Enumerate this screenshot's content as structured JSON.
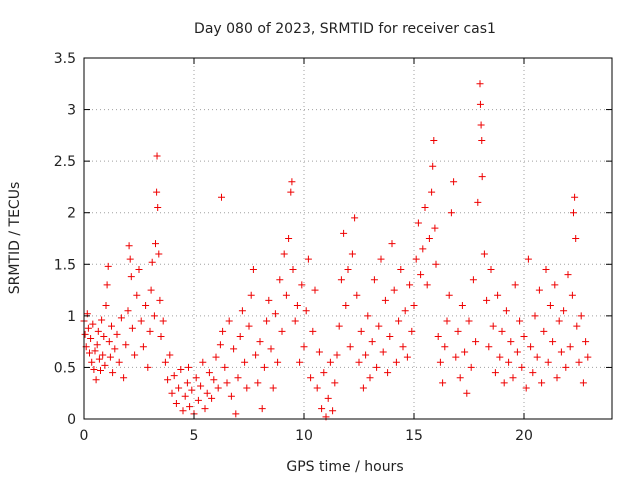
{
  "chart_data": {
    "type": "scatter",
    "title": "Day 080 of 2023, SRMTID for receiver cas1",
    "xlabel": "GPS time / hours",
    "ylabel": "SRMTID / TECUs",
    "xlim": [
      0,
      24
    ],
    "ylim": [
      0,
      3.5
    ],
    "xticks": [
      0,
      5,
      10,
      15,
      20
    ],
    "xtick_labels": [
      "0",
      "5",
      "10",
      "15",
      "20"
    ],
    "yticks": [
      0,
      0.5,
      1,
      1.5,
      2,
      2.5,
      3,
      3.5
    ],
    "ytick_labels": [
      "0",
      "0.5",
      "1",
      "1.5",
      "2",
      "2.5",
      "3",
      "3.5"
    ],
    "grid": true,
    "marker": "+",
    "colors": {
      "marker": "#ee0000"
    },
    "series": [
      {
        "name": "SRMTID",
        "points": [
          [
            0.0,
            0.95
          ],
          [
            0.05,
            0.82
          ],
          [
            0.1,
            0.7
          ],
          [
            0.15,
            1.02
          ],
          [
            0.2,
            0.88
          ],
          [
            0.25,
            0.64
          ],
          [
            0.3,
            0.78
          ],
          [
            0.35,
            0.55
          ],
          [
            0.4,
            0.92
          ],
          [
            0.45,
            0.48
          ],
          [
            0.5,
            0.66
          ],
          [
            0.55,
            0.38
          ],
          [
            0.6,
            0.72
          ],
          [
            0.65,
            0.85
          ],
          [
            0.7,
            0.58
          ],
          [
            0.75,
            0.47
          ],
          [
            0.8,
            0.96
          ],
          [
            0.85,
            0.62
          ],
          [
            0.9,
            0.8
          ],
          [
            0.95,
            0.52
          ],
          [
            1.0,
            1.1
          ],
          [
            1.05,
            1.3
          ],
          [
            1.1,
            1.48
          ],
          [
            1.15,
            0.75
          ],
          [
            1.2,
            0.6
          ],
          [
            1.25,
            0.9
          ],
          [
            1.3,
            0.45
          ],
          [
            1.4,
            0.68
          ],
          [
            1.5,
            0.82
          ],
          [
            1.6,
            0.55
          ],
          [
            1.7,
            0.98
          ],
          [
            1.8,
            0.4
          ],
          [
            1.9,
            0.72
          ],
          [
            2.0,
            1.05
          ],
          [
            2.05,
            1.68
          ],
          [
            2.1,
            1.55
          ],
          [
            2.15,
            1.38
          ],
          [
            2.2,
            0.88
          ],
          [
            2.3,
            0.62
          ],
          [
            2.4,
            1.2
          ],
          [
            2.5,
            1.45
          ],
          [
            2.6,
            0.95
          ],
          [
            2.7,
            0.7
          ],
          [
            2.8,
            1.1
          ],
          [
            2.9,
            0.5
          ],
          [
            3.0,
            0.85
          ],
          [
            3.05,
            1.25
          ],
          [
            3.1,
            1.52
          ],
          [
            3.2,
            1.0
          ],
          [
            3.25,
            1.7
          ],
          [
            3.3,
            2.2
          ],
          [
            3.32,
            2.55
          ],
          [
            3.35,
            2.05
          ],
          [
            3.4,
            1.6
          ],
          [
            3.45,
            1.15
          ],
          [
            3.5,
            0.8
          ],
          [
            3.6,
            0.95
          ],
          [
            3.7,
            0.55
          ],
          [
            3.8,
            0.38
          ],
          [
            3.9,
            0.62
          ],
          [
            4.0,
            0.25
          ],
          [
            4.1,
            0.42
          ],
          [
            4.2,
            0.15
          ],
          [
            4.3,
            0.3
          ],
          [
            4.4,
            0.48
          ],
          [
            4.5,
            0.08
          ],
          [
            4.6,
            0.22
          ],
          [
            4.7,
            0.35
          ],
          [
            4.75,
            0.5
          ],
          [
            4.8,
            0.12
          ],
          [
            4.9,
            0.28
          ],
          [
            5.0,
            0.05
          ],
          [
            5.1,
            0.4
          ],
          [
            5.2,
            0.18
          ],
          [
            5.3,
            0.32
          ],
          [
            5.4,
            0.55
          ],
          [
            5.5,
            0.1
          ],
          [
            5.6,
            0.25
          ],
          [
            5.7,
            0.45
          ],
          [
            5.8,
            0.2
          ],
          [
            5.9,
            0.38
          ],
          [
            6.0,
            0.6
          ],
          [
            6.1,
            0.3
          ],
          [
            6.2,
            0.72
          ],
          [
            6.25,
            2.15
          ],
          [
            6.3,
            0.85
          ],
          [
            6.4,
            0.5
          ],
          [
            6.5,
            0.35
          ],
          [
            6.6,
            0.95
          ],
          [
            6.7,
            0.22
          ],
          [
            6.8,
            0.68
          ],
          [
            6.9,
            0.05
          ],
          [
            7.0,
            0.4
          ],
          [
            7.1,
            0.8
          ],
          [
            7.2,
            1.05
          ],
          [
            7.3,
            0.55
          ],
          [
            7.4,
            0.3
          ],
          [
            7.5,
            0.9
          ],
          [
            7.6,
            1.2
          ],
          [
            7.7,
            1.45
          ],
          [
            7.8,
            0.62
          ],
          [
            7.9,
            0.35
          ],
          [
            8.0,
            0.75
          ],
          [
            8.1,
            0.1
          ],
          [
            8.2,
            0.5
          ],
          [
            8.3,
            0.95
          ],
          [
            8.4,
            1.15
          ],
          [
            8.5,
            0.68
          ],
          [
            8.6,
            0.3
          ],
          [
            8.7,
            1.02
          ],
          [
            8.8,
            0.55
          ],
          [
            8.9,
            1.35
          ],
          [
            9.0,
            0.85
          ],
          [
            9.1,
            1.6
          ],
          [
            9.2,
            1.2
          ],
          [
            9.3,
            1.75
          ],
          [
            9.4,
            2.2
          ],
          [
            9.45,
            2.3
          ],
          [
            9.5,
            1.45
          ],
          [
            9.6,
            0.95
          ],
          [
            9.7,
            1.1
          ],
          [
            9.8,
            0.55
          ],
          [
            9.9,
            1.3
          ],
          [
            10.0,
            0.7
          ],
          [
            10.1,
            1.05
          ],
          [
            10.2,
            1.55
          ],
          [
            10.3,
            0.4
          ],
          [
            10.4,
            0.85
          ],
          [
            10.5,
            1.25
          ],
          [
            10.6,
            0.3
          ],
          [
            10.7,
            0.65
          ],
          [
            10.8,
            0.1
          ],
          [
            10.9,
            0.45
          ],
          [
            11.0,
            0.02
          ],
          [
            11.1,
            0.2
          ],
          [
            11.2,
            0.55
          ],
          [
            11.3,
            0.08
          ],
          [
            11.4,
            0.35
          ],
          [
            11.5,
            0.62
          ],
          [
            11.6,
            0.9
          ],
          [
            11.7,
            1.35
          ],
          [
            11.8,
            1.8
          ],
          [
            11.9,
            1.1
          ],
          [
            12.0,
            1.45
          ],
          [
            12.1,
            0.7
          ],
          [
            12.2,
            1.6
          ],
          [
            12.3,
            1.95
          ],
          [
            12.4,
            1.2
          ],
          [
            12.5,
            0.55
          ],
          [
            12.6,
            0.85
          ],
          [
            12.7,
            0.3
          ],
          [
            12.8,
            0.62
          ],
          [
            12.9,
            1.0
          ],
          [
            13.0,
            0.4
          ],
          [
            13.1,
            0.75
          ],
          [
            13.2,
            1.35
          ],
          [
            13.3,
            0.5
          ],
          [
            13.4,
            0.9
          ],
          [
            13.5,
            1.55
          ],
          [
            13.6,
            0.65
          ],
          [
            13.7,
            1.15
          ],
          [
            13.8,
            0.45
          ],
          [
            13.9,
            0.8
          ],
          [
            14.0,
            1.7
          ],
          [
            14.1,
            1.25
          ],
          [
            14.2,
            0.55
          ],
          [
            14.3,
            0.95
          ],
          [
            14.4,
            1.45
          ],
          [
            14.5,
            0.7
          ],
          [
            14.6,
            1.05
          ],
          [
            14.7,
            0.6
          ],
          [
            14.8,
            1.3
          ],
          [
            14.9,
            0.85
          ],
          [
            15.0,
            1.1
          ],
          [
            15.1,
            1.55
          ],
          [
            15.2,
            1.9
          ],
          [
            15.3,
            1.4
          ],
          [
            15.4,
            1.65
          ],
          [
            15.5,
            2.05
          ],
          [
            15.6,
            1.3
          ],
          [
            15.7,
            1.75
          ],
          [
            15.8,
            2.2
          ],
          [
            15.85,
            2.45
          ],
          [
            15.9,
            2.7
          ],
          [
            15.95,
            1.85
          ],
          [
            16.0,
            1.5
          ],
          [
            16.1,
            0.8
          ],
          [
            16.2,
            0.55
          ],
          [
            16.3,
            0.35
          ],
          [
            16.4,
            0.7
          ],
          [
            16.5,
            0.95
          ],
          [
            16.6,
            1.2
          ],
          [
            16.7,
            2.0
          ],
          [
            16.8,
            2.3
          ],
          [
            16.9,
            0.6
          ],
          [
            17.0,
            0.85
          ],
          [
            17.1,
            0.4
          ],
          [
            17.2,
            1.1
          ],
          [
            17.3,
            0.65
          ],
          [
            17.4,
            0.25
          ],
          [
            17.5,
            0.95
          ],
          [
            17.6,
            0.5
          ],
          [
            17.7,
            1.35
          ],
          [
            17.8,
            0.75
          ],
          [
            17.9,
            2.1
          ],
          [
            18.0,
            3.25
          ],
          [
            18.02,
            3.05
          ],
          [
            18.05,
            2.85
          ],
          [
            18.08,
            2.7
          ],
          [
            18.1,
            2.35
          ],
          [
            18.2,
            1.6
          ],
          [
            18.3,
            1.15
          ],
          [
            18.4,
            0.7
          ],
          [
            18.5,
            1.45
          ],
          [
            18.6,
            0.9
          ],
          [
            18.7,
            0.45
          ],
          [
            18.8,
            1.2
          ],
          [
            18.9,
            0.6
          ],
          [
            19.0,
            0.85
          ],
          [
            19.1,
            0.35
          ],
          [
            19.2,
            1.05
          ],
          [
            19.3,
            0.55
          ],
          [
            19.4,
            0.75
          ],
          [
            19.5,
            0.4
          ],
          [
            19.6,
            1.3
          ],
          [
            19.7,
            0.65
          ],
          [
            19.8,
            0.95
          ],
          [
            19.9,
            0.5
          ],
          [
            20.0,
            0.8
          ],
          [
            20.1,
            0.3
          ],
          [
            20.2,
            1.55
          ],
          [
            20.3,
            0.7
          ],
          [
            20.4,
            0.45
          ],
          [
            20.5,
            1.0
          ],
          [
            20.6,
            0.6
          ],
          [
            20.7,
            1.25
          ],
          [
            20.8,
            0.35
          ],
          [
            20.9,
            0.85
          ],
          [
            21.0,
            1.45
          ],
          [
            21.1,
            0.55
          ],
          [
            21.2,
            1.1
          ],
          [
            21.3,
            0.75
          ],
          [
            21.4,
            1.3
          ],
          [
            21.5,
            0.4
          ],
          [
            21.6,
            0.95
          ],
          [
            21.7,
            0.65
          ],
          [
            21.8,
            1.05
          ],
          [
            21.9,
            0.5
          ],
          [
            22.0,
            1.4
          ],
          [
            22.1,
            0.7
          ],
          [
            22.2,
            1.2
          ],
          [
            22.25,
            2.0
          ],
          [
            22.3,
            2.15
          ],
          [
            22.35,
            1.75
          ],
          [
            22.4,
            0.9
          ],
          [
            22.5,
            0.55
          ],
          [
            22.6,
            1.0
          ],
          [
            22.7,
            0.35
          ],
          [
            22.8,
            0.75
          ],
          [
            22.9,
            0.6
          ]
        ]
      }
    ]
  }
}
